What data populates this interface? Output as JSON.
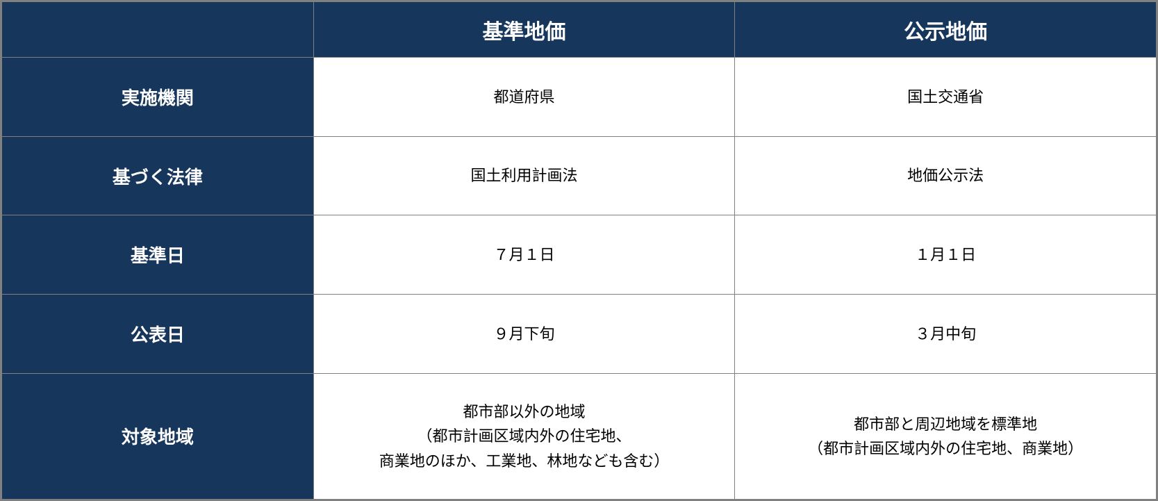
{
  "table": {
    "columns": [
      "基準地価",
      "公示地価"
    ],
    "rows": [
      {
        "label": "実施機関",
        "col1": "都道府県",
        "col2": "国土交通省",
        "tall": false
      },
      {
        "label": "基づく法律",
        "col1": "国土利用計画法",
        "col2": "地価公示法",
        "tall": false
      },
      {
        "label": "基準日",
        "col1": "７月１日",
        "col2": "１月１日",
        "tall": false
      },
      {
        "label": "公表日",
        "col1": "９月下旬",
        "col2": "３月中旬",
        "tall": false
      },
      {
        "label": "対象地域",
        "col1": "都市部以外の地域\n（都市計画区域内外の住宅地、\n商業地のほか、工業地、林地なども含む）",
        "col2": "都市部と周辺地域を標準地\n（都市計画区域内外の住宅地、商業地）",
        "tall": true
      }
    ],
    "styling": {
      "header_bg_color": "#16365c",
      "header_text_color": "#ffffff",
      "data_bg_color": "#ffffff",
      "data_text_color": "#000000",
      "border_color": "#808080",
      "header_fontsize": 30,
      "row_header_fontsize": 26,
      "data_fontsize": 22
    }
  }
}
